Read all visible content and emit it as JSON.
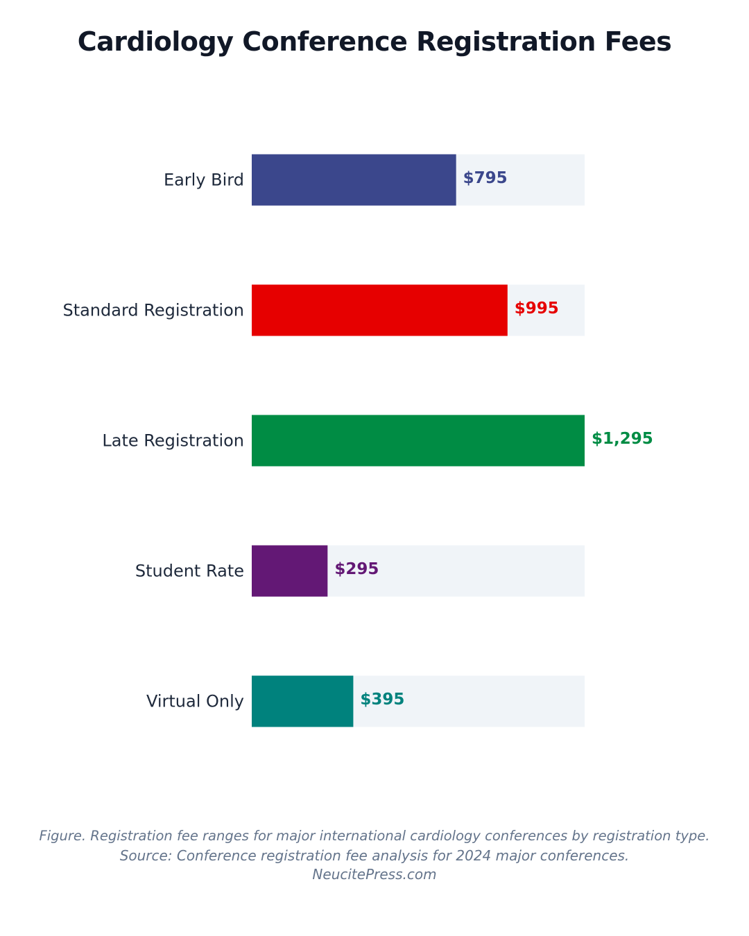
{
  "title": "Cardiology Conference Registration Fees",
  "chart_data": {
    "type": "bar",
    "orientation": "horizontal",
    "title": "Cardiology Conference Registration Fees",
    "xlabel": "",
    "ylabel": "",
    "xlim": [
      0,
      1295
    ],
    "grid": false,
    "legend": "none",
    "track_color": "#f0f4f8",
    "categories": [
      "Early Bird",
      "Standard Registration",
      "Late Registration",
      "Student Rate",
      "Virtual Only"
    ],
    "values": [
      795,
      995,
      1295,
      295,
      395
    ],
    "value_labels": [
      "$795",
      "$995",
      "$1,295",
      "$295",
      "$395"
    ],
    "colors": [
      "#3b478c",
      "#e60000",
      "#008c44",
      "#631875",
      "#00827d"
    ]
  },
  "caption": {
    "line1": "Figure. Registration fee ranges for major international cardiology conferences by registration type.",
    "line2": "Source: Conference registration fee analysis for 2024 major conferences.",
    "line3": "NeucitePress.com"
  }
}
